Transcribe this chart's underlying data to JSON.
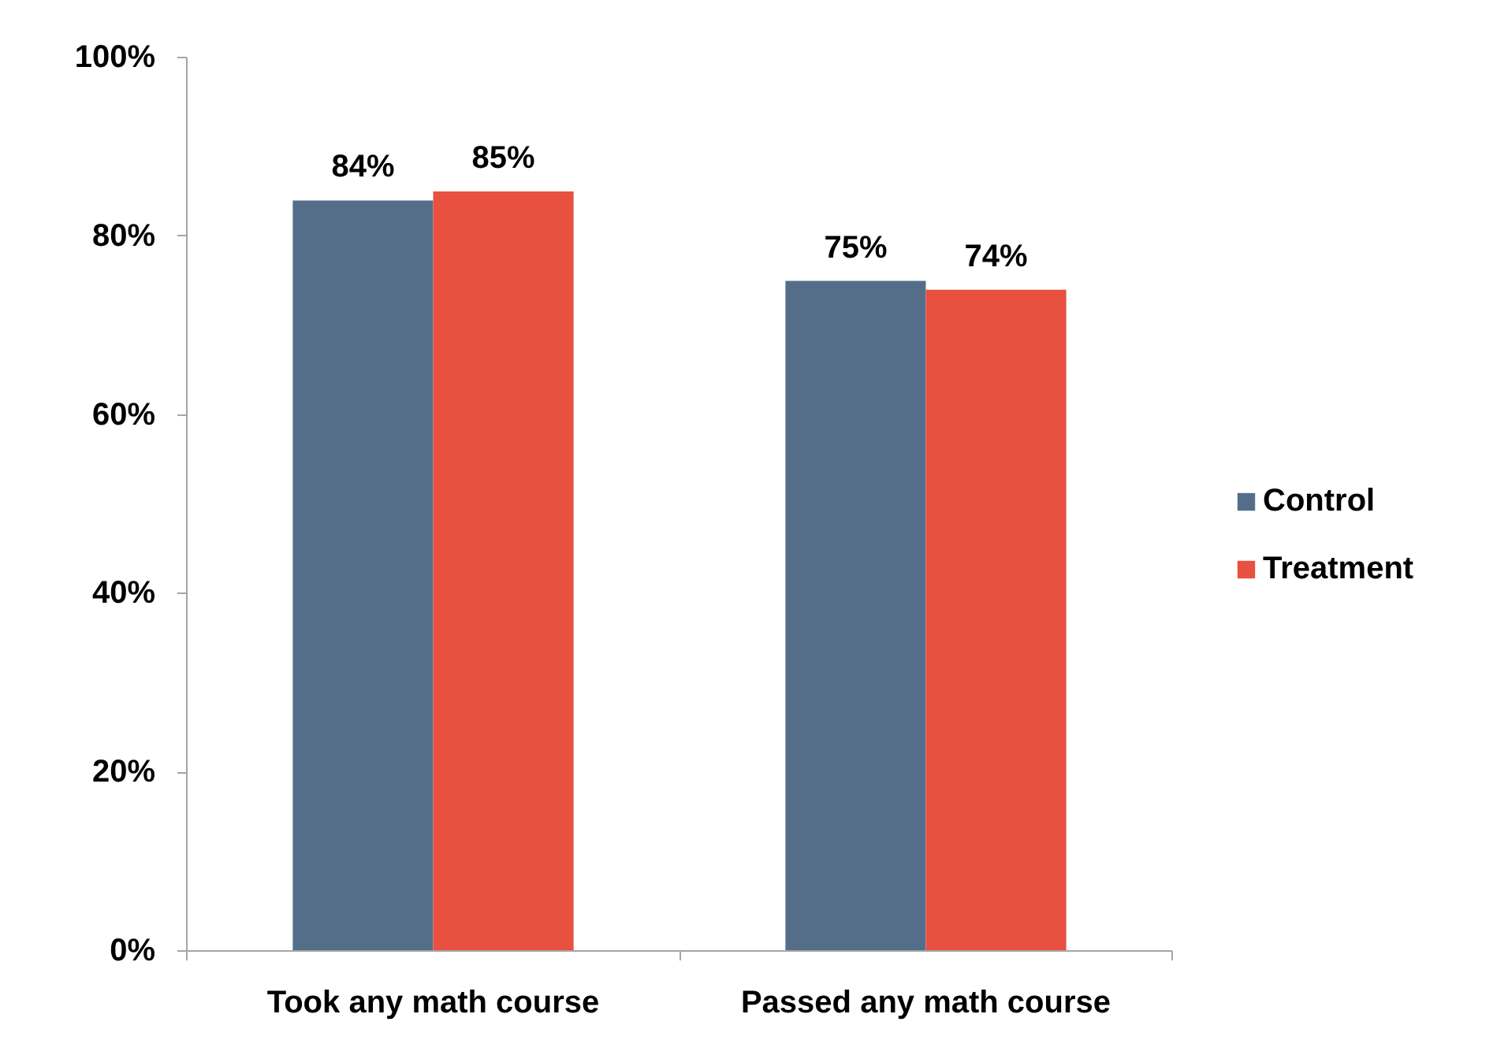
{
  "chart_data": {
    "type": "bar",
    "categories": [
      "Took any math course",
      "Passed any math course"
    ],
    "series": [
      {
        "name": "Control",
        "color": "#546e8a",
        "values": [
          84,
          75
        ],
        "value_labels": [
          "84%",
          "75%"
        ]
      },
      {
        "name": "Treatment",
        "color": "#e8503f",
        "values": [
          85,
          74
        ],
        "value_labels": [
          "85%",
          "74%"
        ]
      }
    ],
    "ylim": [
      0,
      100
    ],
    "yticks": [
      {
        "value": 0,
        "label": "0%"
      },
      {
        "value": 20,
        "label": "20%"
      },
      {
        "value": 40,
        "label": "40%"
      },
      {
        "value": 60,
        "label": "60%"
      },
      {
        "value": 80,
        "label": "80%"
      },
      {
        "value": 100,
        "label": "100%"
      }
    ],
    "legend": "right"
  }
}
